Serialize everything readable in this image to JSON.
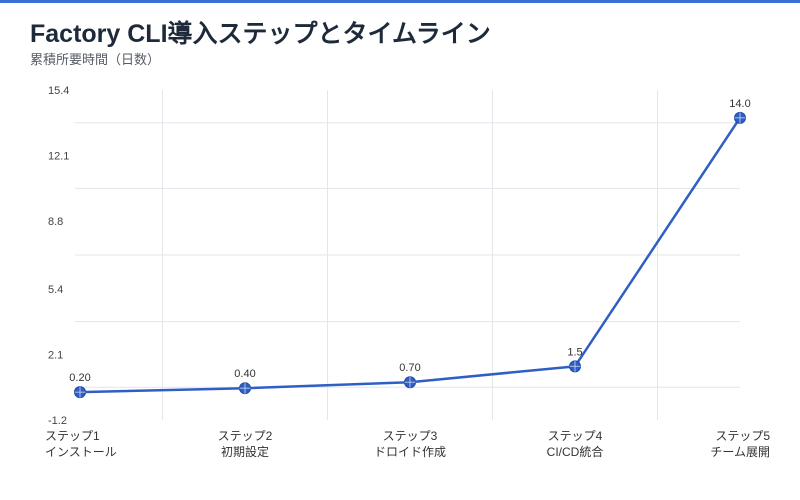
{
  "header": {
    "title": "Factory CLI導入ステップとタイムライン",
    "subtitle": "累積所要時間（日数）"
  },
  "colors": {
    "accent": "#3a6fd8",
    "line": "#2f5fc4",
    "grid": "#e3e6ea"
  },
  "chart_data": {
    "type": "line",
    "title": "Factory CLI導入ステップとタイムライン",
    "subtitle": "累積所要時間（日数）",
    "xlabel": "",
    "ylabel": "",
    "categories": [
      [
        "ステップ1",
        "インストール"
      ],
      [
        "ステップ2",
        "初期設定"
      ],
      [
        "ステップ3",
        "ドロイド作成"
      ],
      [
        "ステップ4",
        "CI/CD統合"
      ],
      [
        "ステップ5",
        "チーム展開"
      ]
    ],
    "series": [
      {
        "values": [
          0.2,
          0.4,
          0.7,
          1.5,
          14.0
        ],
        "labels": [
          "0.20",
          "0.40",
          "0.70",
          "1.5",
          "14.0"
        ]
      }
    ],
    "ylim": [
      -1.2,
      15.4
    ],
    "yticks": [
      15.4,
      12.1,
      8.8,
      5.4,
      2.1,
      -1.2
    ],
    "ytick_labels": [
      "15.4",
      "12.1",
      "8.8",
      "5.4",
      "2.1",
      "-1.2"
    ],
    "grid": true,
    "legend": "none"
  }
}
